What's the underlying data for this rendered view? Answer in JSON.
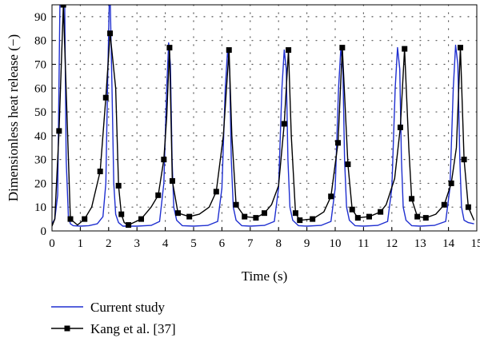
{
  "chart_data": {
    "type": "line",
    "xlabel": "Time (s)",
    "ylabel": "Dimensionless heat release (−)",
    "xlim": [
      0,
      15
    ],
    "ylim": [
      0,
      95
    ],
    "xticks": [
      0,
      1,
      2,
      3,
      4,
      5,
      6,
      7,
      8,
      9,
      10,
      11,
      12,
      13,
      14,
      15
    ],
    "yticks": [
      0,
      10,
      20,
      30,
      40,
      50,
      60,
      70,
      80,
      90
    ],
    "grid": "dotted",
    "legend_position": "bottom-left",
    "series": [
      {
        "name": "Current study",
        "color": "#1f2fd0",
        "marker": "none",
        "x": [
          0.0,
          0.1,
          0.2,
          0.28,
          0.33,
          0.4,
          0.45,
          0.5,
          0.58,
          0.65,
          0.75,
          1.0,
          1.3,
          1.6,
          1.8,
          1.9,
          1.96,
          2.02,
          2.06,
          2.12,
          2.18,
          2.25,
          2.35,
          2.5,
          3.0,
          3.5,
          3.8,
          3.95,
          4.05,
          4.12,
          4.18,
          4.24,
          4.3,
          4.4,
          4.6,
          5.0,
          5.5,
          5.85,
          6.0,
          6.12,
          6.2,
          6.27,
          6.33,
          6.4,
          6.5,
          6.7,
          7.0,
          7.5,
          7.85,
          8.0,
          8.12,
          8.2,
          8.27,
          8.33,
          8.4,
          8.5,
          8.7,
          9.0,
          9.5,
          9.85,
          10.0,
          10.12,
          10.2,
          10.27,
          10.33,
          10.4,
          10.5,
          10.7,
          11.0,
          11.5,
          11.85,
          12.0,
          12.12,
          12.2,
          12.28,
          12.34,
          12.4,
          12.5,
          12.7,
          13.0,
          13.5,
          13.9,
          14.05,
          14.17,
          14.25,
          14.33,
          14.4,
          14.46,
          14.55,
          14.7,
          14.9
        ],
        "y": [
          3,
          5,
          15,
          95,
          95,
          95,
          95,
          30,
          6,
          3,
          2.2,
          2,
          2.2,
          3,
          6,
          20,
          60,
          95,
          95,
          60,
          20,
          7,
          3.5,
          2,
          2,
          2.3,
          4,
          20,
          60,
          79,
          70,
          30,
          10,
          4.5,
          2.2,
          2,
          2.3,
          4,
          18,
          60,
          76,
          68,
          30,
          10,
          4.5,
          2.2,
          2,
          2.3,
          4,
          18,
          60,
          76,
          68,
          30,
          10,
          4.5,
          2.2,
          2,
          2.3,
          4,
          18,
          60,
          77,
          68,
          30,
          10,
          4.5,
          2.2,
          2,
          2.3,
          4,
          18,
          60,
          77,
          68,
          30,
          10,
          4.5,
          2.2,
          2,
          2.3,
          4,
          18,
          60,
          78,
          70,
          30,
          10,
          4.5,
          3.5,
          3
        ]
      },
      {
        "name": "Kang et al. [37]",
        "color": "#000000",
        "marker": "square",
        "x": [
          0.0,
          0.1,
          0.25,
          0.4,
          0.65,
          0.9,
          1.15,
          1.4,
          1.7,
          1.9,
          2.05,
          2.25,
          2.35,
          2.45,
          2.55,
          2.7,
          3.15,
          3.5,
          3.75,
          3.95,
          4.05,
          4.15,
          4.25,
          4.45,
          4.85,
          5.2,
          5.55,
          5.8,
          6.05,
          6.25,
          6.35,
          6.5,
          6.8,
          7.2,
          7.5,
          7.75,
          8.0,
          8.2,
          8.35,
          8.45,
          8.6,
          8.75,
          9.2,
          9.6,
          9.85,
          10.1,
          10.25,
          10.45,
          10.6,
          10.8,
          11.2,
          11.6,
          11.8,
          12.1,
          12.3,
          12.45,
          12.6,
          12.7,
          12.9,
          13.2,
          13.55,
          13.85,
          14.1,
          14.28,
          14.42,
          14.55,
          14.7,
          14.9
        ],
        "y": [
          2,
          5,
          42,
          95,
          5,
          2.5,
          5,
          10,
          25,
          56,
          83,
          60,
          19,
          7,
          3.5,
          2.5,
          5,
          10,
          15,
          30,
          48,
          77,
          21,
          7.5,
          6,
          7,
          10,
          16.5,
          40,
          76,
          40,
          11,
          6,
          5.5,
          7.5,
          11,
          19,
          45,
          76,
          40,
          7.5,
          4.5,
          5,
          8,
          14.5,
          37,
          77,
          28,
          9,
          5.5,
          6,
          8,
          11,
          22,
          43.5,
          76.5,
          35,
          13.5,
          6,
          5.5,
          7,
          11,
          20,
          35,
          77,
          30,
          10,
          4.5
        ],
        "marker_x": [
          0.25,
          0.4,
          0.65,
          1.15,
          1.7,
          1.9,
          2.05,
          2.35,
          2.45,
          2.7,
          3.15,
          3.75,
          3.95,
          4.15,
          4.25,
          4.45,
          4.85,
          5.8,
          6.25,
          6.5,
          6.8,
          7.2,
          7.5,
          8.2,
          8.35,
          8.6,
          8.75,
          9.2,
          9.85,
          10.1,
          10.25,
          10.45,
          10.6,
          10.8,
          11.2,
          11.6,
          12.3,
          12.45,
          12.7,
          12.9,
          13.2,
          13.85,
          14.1,
          14.42,
          14.55,
          14.7
        ]
      }
    ]
  }
}
